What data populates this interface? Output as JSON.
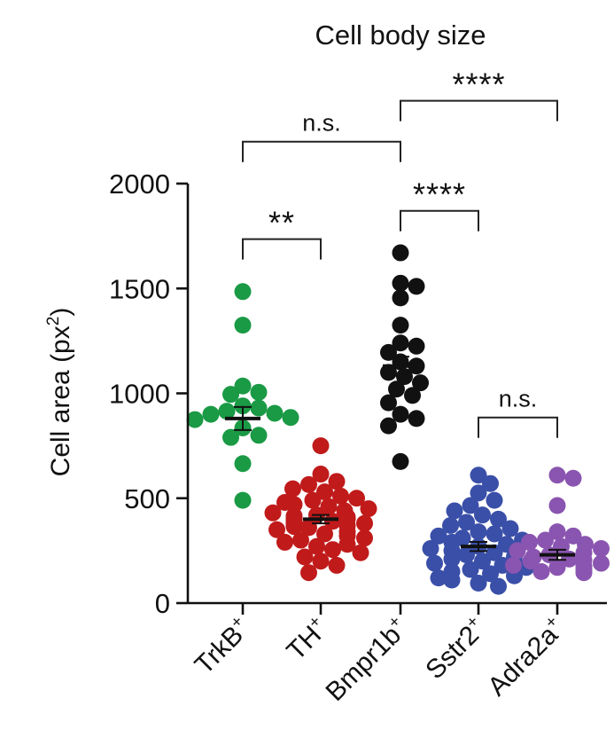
{
  "chart_data": {
    "type": "scatter",
    "title": "Cell body size",
    "ylabel": "Cell area (px",
    "ylabel_sup": "2",
    "ylabel_end": ")",
    "ylim": [
      0,
      2000
    ],
    "yticks": [
      0,
      500,
      1000,
      1500,
      2000
    ],
    "ytick_labels": [
      "0",
      "500",
      "1000",
      "1500",
      "2000"
    ],
    "categories": [
      {
        "name": "TrkB",
        "sup": "+"
      },
      {
        "name": "TH",
        "sup": "+"
      },
      {
        "name": "Bmpr1b",
        "sup": "+"
      },
      {
        "name": "Sstr2",
        "sup": "+"
      },
      {
        "name": "Adra2a",
        "sup": "+"
      }
    ],
    "colors": [
      "#1a9a45",
      "#c01a1a",
      "#111111",
      "#3a4fa8",
      "#8a55b0"
    ],
    "series": [
      {
        "values": [
          1485,
          1325,
          1035,
          1005,
          995,
          940,
          930,
          915,
          900,
          905,
          885,
          875,
          835,
          800,
          790,
          665,
          490
        ]
      },
      {
        "values": [
          750,
          615,
          580,
          565,
          545,
          530,
          510,
          500,
          490,
          480,
          470,
          460,
          450,
          440,
          430,
          420,
          415,
          410,
          405,
          400,
          395,
          390,
          385,
          380,
          375,
          370,
          365,
          360,
          350,
          340,
          330,
          320,
          310,
          300,
          290,
          280,
          270,
          255,
          240,
          220,
          200,
          180,
          145
        ]
      },
      {
        "values": [
          1670,
          1525,
          1510,
          1455,
          1325,
          1240,
          1225,
          1195,
          1150,
          1130,
          1100,
          1080,
          1050,
          1020,
          990,
          955,
          900,
          880,
          845,
          675
        ]
      },
      {
        "values": [
          610,
          570,
          525,
          490,
          465,
          440,
          420,
          400,
          385,
          370,
          355,
          340,
          330,
          320,
          310,
          300,
          290,
          280,
          270,
          260,
          250,
          240,
          230,
          220,
          210,
          200,
          190,
          180,
          170,
          160,
          150,
          140,
          130,
          120,
          110,
          95,
          80
        ]
      },
      {
        "values": [
          610,
          595,
          465,
          340,
          320,
          300,
          290,
          280,
          270,
          260,
          250,
          240,
          230,
          220,
          210,
          205,
          200,
          190,
          180,
          175,
          170,
          160,
          150,
          145
        ]
      }
    ],
    "means": [
      880,
      400,
      1130,
      270,
      230
    ],
    "sem": [
      55,
      20,
      45,
      22,
      24
    ],
    "comparisons": [
      {
        "from": 0,
        "to": 2,
        "label": "n.s.",
        "y": 2200,
        "level": "low"
      },
      {
        "from": 2,
        "to": 4,
        "label": "****",
        "y": 2395,
        "level": "high"
      },
      {
        "from": 0,
        "to": 1,
        "label": "**",
        "y": 1735,
        "level": "mid"
      },
      {
        "from": 2,
        "to": 3,
        "label": "****",
        "y": 1870,
        "level": "mid"
      },
      {
        "from": 3,
        "to": 4,
        "label": "n.s.",
        "y": 885,
        "level": "low"
      }
    ],
    "grid": false,
    "legend": "none"
  }
}
